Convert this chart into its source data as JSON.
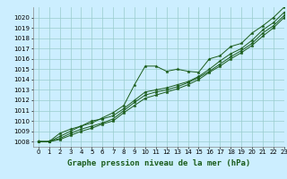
{
  "xlabel": "Graphe pression niveau de la mer (hPa)",
  "bg_color": "#cceeff",
  "grid_color": "#99cccc",
  "line_color": "#1a5c1a",
  "marker_color": "#1a5c1a",
  "xlim": [
    -0.5,
    23
  ],
  "ylim": [
    1007.5,
    1021.0
  ],
  "yticks": [
    1008,
    1009,
    1010,
    1011,
    1012,
    1013,
    1014,
    1015,
    1016,
    1017,
    1018,
    1019,
    1020
  ],
  "xticks": [
    0,
    1,
    2,
    3,
    4,
    5,
    6,
    7,
    8,
    9,
    10,
    11,
    12,
    13,
    14,
    15,
    16,
    17,
    18,
    19,
    20,
    21,
    22,
    23
  ],
  "series": [
    [
      1008.0,
      1008.0,
      1008.8,
      1009.2,
      1009.5,
      1009.8,
      1010.3,
      1010.8,
      1011.5,
      1013.5,
      1015.3,
      1015.3,
      1014.8,
      1015.0,
      1014.8,
      1014.7,
      1016.0,
      1016.3,
      1017.2,
      1017.5,
      1018.5,
      1019.2,
      1020.0,
      1021.0
    ],
    [
      1008.0,
      1008.0,
      1008.5,
      1009.0,
      1009.5,
      1010.0,
      1010.2,
      1010.5,
      1011.2,
      1012.0,
      1012.8,
      1013.0,
      1013.2,
      1013.5,
      1013.8,
      1014.3,
      1015.0,
      1015.8,
      1016.5,
      1017.0,
      1017.8,
      1018.8,
      1019.5,
      1020.5
    ],
    [
      1008.0,
      1008.0,
      1008.3,
      1008.8,
      1009.2,
      1009.5,
      1009.8,
      1010.2,
      1011.0,
      1011.8,
      1012.5,
      1012.8,
      1013.0,
      1013.3,
      1013.7,
      1014.2,
      1014.8,
      1015.5,
      1016.2,
      1016.8,
      1017.5,
      1018.5,
      1019.2,
      1020.2
    ],
    [
      1008.0,
      1008.0,
      1008.2,
      1008.6,
      1009.0,
      1009.3,
      1009.7,
      1010.0,
      1010.8,
      1011.5,
      1012.2,
      1012.5,
      1012.8,
      1013.1,
      1013.5,
      1014.0,
      1014.7,
      1015.3,
      1016.0,
      1016.6,
      1017.3,
      1018.2,
      1019.0,
      1020.0
    ]
  ],
  "tick_fontsize": 5,
  "label_fontsize": 6.5
}
